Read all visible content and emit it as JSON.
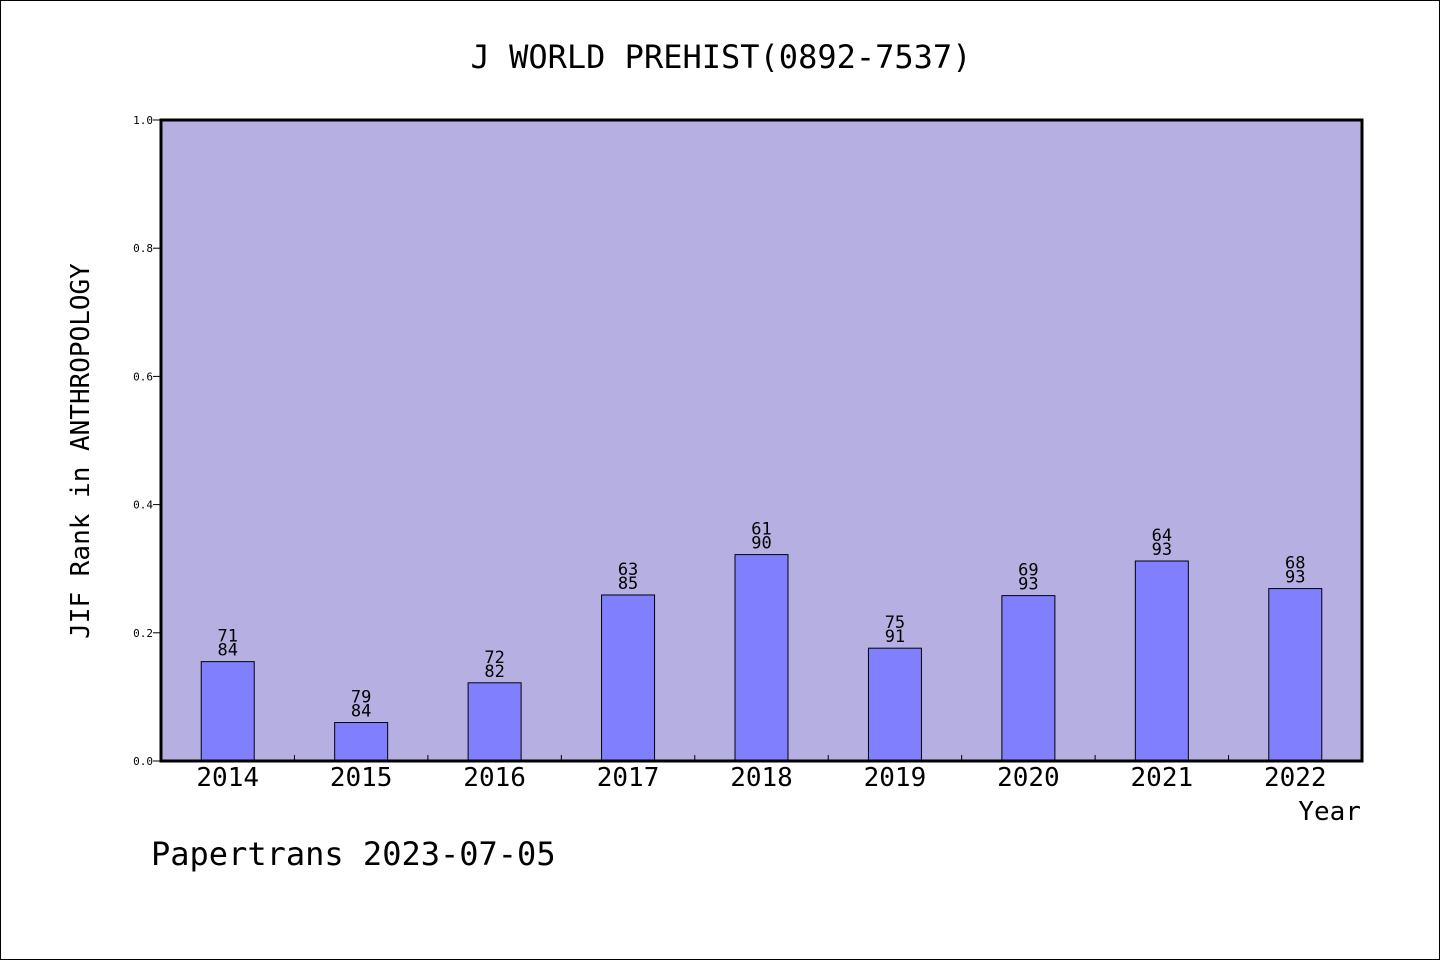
{
  "chart_data": {
    "type": "bar",
    "title": "J WORLD PREHIST(0892-7537)",
    "xlabel": "Year",
    "ylabel": "JIF Rank in ANTHROPOLOGY",
    "ylim": [
      0.0,
      1.0
    ],
    "yticks": [
      "0.0",
      "0.2",
      "0.4",
      "0.6",
      "0.8",
      "1.0"
    ],
    "categories": [
      "2014",
      "2015",
      "2016",
      "2017",
      "2018",
      "2019",
      "2020",
      "2021",
      "2022"
    ],
    "values": [
      0.155,
      0.06,
      0.122,
      0.259,
      0.322,
      0.176,
      0.258,
      0.312,
      0.269
    ],
    "rank_labels": [
      {
        "rank": "71",
        "total": "84"
      },
      {
        "rank": "79",
        "total": "84"
      },
      {
        "rank": "72",
        "total": "82"
      },
      {
        "rank": "63",
        "total": "85"
      },
      {
        "rank": "61",
        "total": "90"
      },
      {
        "rank": "75",
        "total": "91"
      },
      {
        "rank": "69",
        "total": "93"
      },
      {
        "rank": "64",
        "total": "93"
      },
      {
        "rank": "68",
        "total": "93"
      }
    ],
    "grid": false,
    "colors": {
      "plot_background": "#b6b0e2",
      "bar_fill": "#8080ff",
      "bar_stroke": "#000000"
    }
  },
  "footer": {
    "text": "Papertrans 2023-07-05"
  }
}
